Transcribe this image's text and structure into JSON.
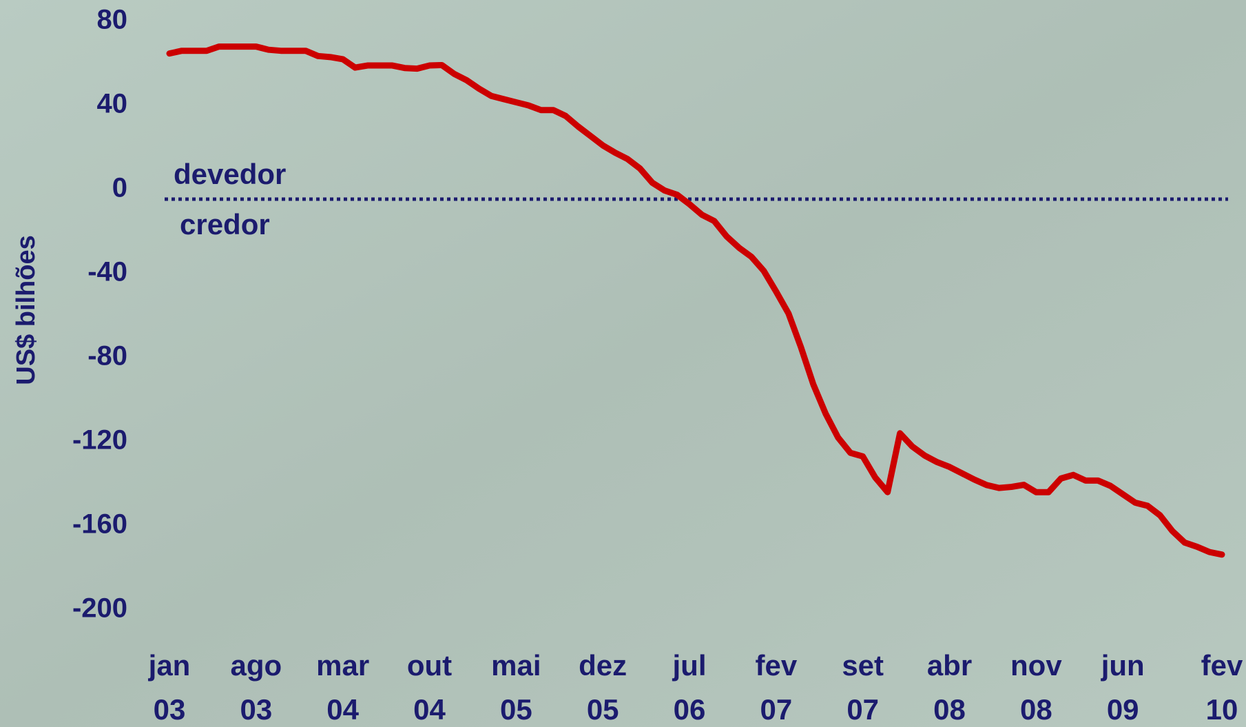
{
  "chart_data": {
    "type": "line",
    "ylabel": "US$ bilhões",
    "annotations": [
      "devedor",
      "credor"
    ],
    "reference_line": 0,
    "categories": [
      "jan 03",
      null,
      null,
      null,
      null,
      null,
      null,
      "ago 03",
      null,
      null,
      null,
      null,
      null,
      null,
      "mar 04",
      null,
      null,
      null,
      null,
      null,
      null,
      "out 04",
      null,
      null,
      null,
      null,
      null,
      null,
      "mai 05",
      null,
      null,
      null,
      null,
      null,
      null,
      "dez 05",
      null,
      null,
      null,
      null,
      null,
      null,
      "jul 06",
      null,
      null,
      null,
      null,
      null,
      null,
      "fev 07",
      null,
      null,
      null,
      null,
      null,
      null,
      "set 07",
      null,
      null,
      null,
      null,
      null,
      null,
      "abr 08",
      null,
      null,
      null,
      null,
      null,
      null,
      "nov 08",
      null,
      null,
      null,
      null,
      null,
      null,
      "jun 09",
      null,
      null,
      null,
      null,
      null,
      null,
      null,
      "fev 10"
    ],
    "series": [
      {
        "color": "#cc0000",
        "values": [
          64.7,
          66,
          66,
          66,
          68,
          68,
          68,
          68,
          66.5,
          66,
          66,
          66,
          63.5,
          63,
          62,
          58,
          59,
          59,
          59,
          57.8,
          57.5,
          59,
          59.2,
          55,
          52,
          48,
          44.5,
          43,
          41.5,
          40,
          37.8,
          37.8,
          35,
          30,
          25.5,
          21,
          17.5,
          14.5,
          10,
          3.2,
          -0.5,
          -2.5,
          -7,
          -12,
          -15,
          -22.3,
          -27.7,
          -32,
          -38.7,
          -48.6,
          -59,
          -75,
          -92.7,
          -106.7,
          -118,
          -125.3,
          -127,
          -137,
          -144,
          -116,
          -122.3,
          -126.6,
          -129.7,
          -132,
          -135,
          -138,
          -140.6,
          -142,
          -141.5,
          -140.5,
          -144,
          -144,
          -137.5,
          -135.8,
          -138.5,
          -138.5,
          -141,
          -145,
          -149,
          -150.5,
          -155,
          -162.5,
          -168,
          -170,
          -172.5,
          -173.7
        ]
      }
    ],
    "ylim": [
      -200,
      80
    ],
    "yticks": [
      80,
      40,
      0,
      -40,
      -80,
      -120,
      -160,
      -200
    ],
    "grid": false
  }
}
